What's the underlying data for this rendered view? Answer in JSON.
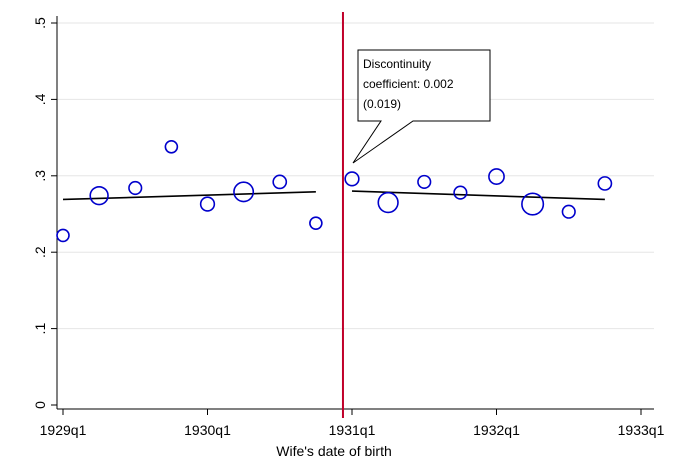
{
  "chart_data": {
    "type": "scatter",
    "title": "",
    "xlabel": "Wife's date of birth",
    "ylabel": "",
    "xlim": [
      "1929q1",
      "1933q1"
    ],
    "ylim": [
      0,
      0.5
    ],
    "grid": true,
    "x_ticks": [
      "1929q1",
      "1930q1",
      "1931q1",
      "1932q1",
      "1933q1"
    ],
    "y_ticks": [
      "0",
      ".1",
      ".2",
      ".3",
      ".4",
      ".5"
    ],
    "series": [
      {
        "marker": "hollow-circle",
        "color": "#0000cc",
        "points": [
          {
            "x": "1929q1",
            "y": 0.222,
            "weight": 1.0
          },
          {
            "x": "1929q2",
            "y": 0.274,
            "weight": 2.2
          },
          {
            "x": "1929q3",
            "y": 0.284,
            "weight": 1.1
          },
          {
            "x": "1929q4",
            "y": 0.338,
            "weight": 1.0
          },
          {
            "x": "1930q1",
            "y": 0.263,
            "weight": 1.3
          },
          {
            "x": "1930q2",
            "y": 0.279,
            "weight": 2.6
          },
          {
            "x": "1930q3",
            "y": 0.292,
            "weight": 1.2
          },
          {
            "x": "1930q4",
            "y": 0.238,
            "weight": 1.0
          },
          {
            "x": "1931q1",
            "y": 0.296,
            "weight": 1.3
          },
          {
            "x": "1931q2",
            "y": 0.265,
            "weight": 2.7
          },
          {
            "x": "1931q3",
            "y": 0.292,
            "weight": 1.1
          },
          {
            "x": "1931q4",
            "y": 0.278,
            "weight": 1.1
          },
          {
            "x": "1932q1",
            "y": 0.299,
            "weight": 1.6
          },
          {
            "x": "1932q2",
            "y": 0.263,
            "weight": 3.2
          },
          {
            "x": "1932q3",
            "y": 0.253,
            "weight": 1.1
          },
          {
            "x": "1932q4",
            "y": 0.29,
            "weight": 1.2
          }
        ]
      }
    ],
    "fit_lines": [
      {
        "x": [
          "1929q1",
          "1930q4"
        ],
        "y": [
          0.269,
          0.279
        ],
        "color": "#000000"
      },
      {
        "x": [
          "1931q1",
          "1932q4"
        ],
        "y": [
          0.28,
          0.269
        ],
        "color": "#000000"
      }
    ],
    "cutoff": {
      "x": "1930q4.75",
      "color": "#c0002a"
    },
    "annotation": {
      "lines": [
        "Discontinuity",
        "coefficient: 0.002",
        "(0.019)"
      ]
    }
  }
}
